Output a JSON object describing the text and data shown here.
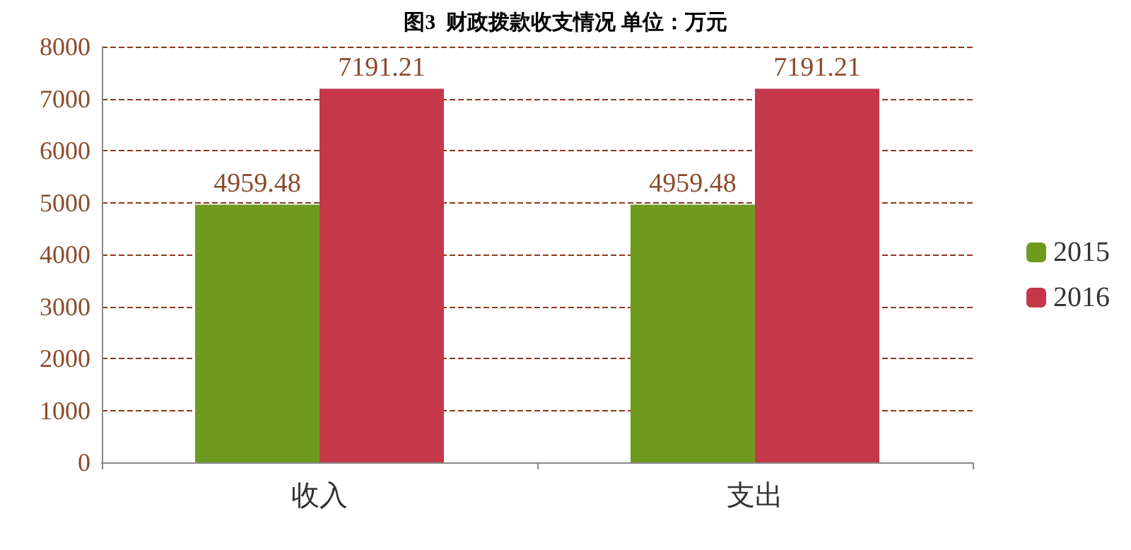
{
  "chart_data": {
    "type": "bar",
    "title": "图3  财政拨款收支情况 单位：万元",
    "categories": [
      "收入",
      "支出"
    ],
    "series": [
      {
        "name": "2015",
        "color": "#6e9a1e",
        "values": [
          4959.48,
          4959.48
        ]
      },
      {
        "name": "2016",
        "color": "#c4384a",
        "values": [
          7191.21,
          7191.21
        ]
      }
    ],
    "ylim": [
      0,
      8000
    ],
    "yticks": [
      0,
      1000,
      2000,
      3000,
      4000,
      5000,
      6000,
      7000,
      8000
    ],
    "grid": "y",
    "legend": "right",
    "data_labels": true
  }
}
